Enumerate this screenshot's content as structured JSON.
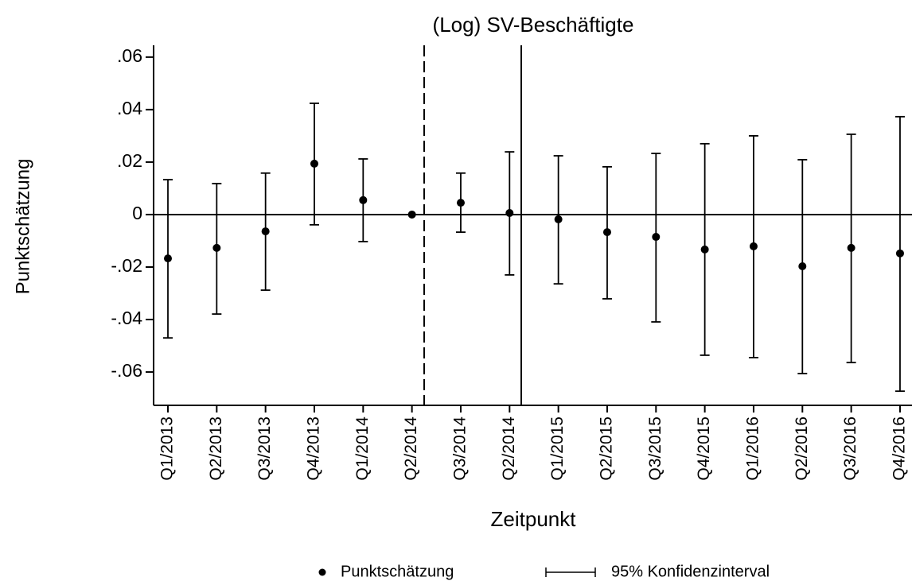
{
  "chart_data": {
    "type": "errorbar",
    "title": "(Log) SV-Beschäftigte",
    "xlabel": "Zeitpunkt",
    "ylabel": "Punktschätzung",
    "categories": [
      "Q1/2013",
      "Q2/2013",
      "Q3/2013",
      "Q4/2013",
      "Q1/2014",
      "Q2/2014",
      "Q3/2014",
      "Q2/2014",
      "Q1/2015",
      "Q2/2015",
      "Q3/2015",
      "Q4/2015",
      "Q1/2016",
      "Q2/2016",
      "Q3/2016",
      "Q4/2016"
    ],
    "series": [
      {
        "name": "Punktschätzung",
        "color": "#000000",
        "values": [
          -0.0167,
          -0.0127,
          -0.0064,
          0.0194,
          0.0055,
          0,
          0.0045,
          0.0006,
          -0.0018,
          -0.0067,
          -0.0085,
          -0.0133,
          -0.0121,
          -0.0197,
          -0.0127,
          -0.0148
        ]
      },
      {
        "name": "95% Konfidenzinterval",
        "color": "#000000",
        "lower": [
          -0.047,
          -0.0379,
          -0.0288,
          -0.0039,
          -0.0103,
          null,
          -0.0067,
          -0.023,
          -0.0264,
          -0.0321,
          -0.0409,
          -0.0536,
          -0.0545,
          -0.0606,
          -0.0564,
          -0.0673
        ],
        "upper": [
          0.0133,
          0.0118,
          0.0158,
          0.0424,
          0.0212,
          null,
          0.0158,
          0.0239,
          0.0224,
          0.0182,
          0.0233,
          0.027,
          0.03,
          0.0209,
          0.0306,
          0.0373
        ]
      }
    ],
    "ylim": [
      -0.0727,
      0.0645
    ],
    "yticks": [
      {
        "value": 0.06,
        "label": ".06"
      },
      {
        "value": 0.04,
        "label": ".04"
      },
      {
        "value": 0.02,
        "label": ".02"
      },
      0,
      {
        "value": -0.02,
        "label": "-.02"
      },
      {
        "value": -0.04,
        "label": "-.04"
      },
      {
        "value": -0.06,
        "label": "-.06"
      }
    ],
    "legend": "bottom"
  }
}
